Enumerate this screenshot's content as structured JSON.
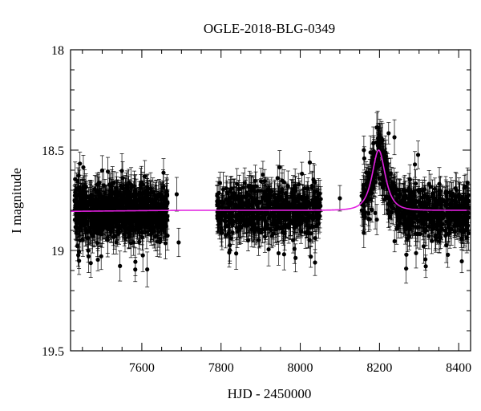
{
  "chart_data": {
    "type": "scatter",
    "title": "OGLE-2018-BLG-0349",
    "xlabel": "HJD - 2450000",
    "ylabel": "I magnitude",
    "xlim": [
      7420,
      8430
    ],
    "ylim": [
      19.5,
      18.0
    ],
    "y_inverted": true,
    "grid": false,
    "x_ticks": [
      {
        "value": 7600,
        "label": "7600"
      },
      {
        "value": 7800,
        "label": "7800"
      },
      {
        "value": 8000,
        "label": "8000"
      },
      {
        "value": 8200,
        "label": "8200"
      },
      {
        "value": 8400,
        "label": "8400"
      }
    ],
    "y_ticks": [
      {
        "value": 18.0,
        "label": "18"
      },
      {
        "value": 18.5,
        "label": "18.5"
      },
      {
        "value": 19.0,
        "label": "19"
      },
      {
        "value": 19.5,
        "label": "19.5"
      }
    ],
    "x_minor_step": 50,
    "y_minor_step": 0.1,
    "series": [
      {
        "kind": "points_with_errorbars",
        "color": "#000000",
        "baseline_mag": 18.8,
        "scatter_mag": 0.06,
        "typical_error": 0.07,
        "seasons": [
          {
            "start": 7430,
            "end": 7665,
            "n_points": 900
          },
          {
            "start": 7790,
            "end": 8052,
            "n_points": 600
          },
          {
            "start": 8155,
            "end": 8425,
            "n_points": 700
          }
        ],
        "isolated_points": [
          {
            "x": 7688,
            "y": 18.72
          },
          {
            "x": 7693,
            "y": 18.96
          },
          {
            "x": 8100,
            "y": 18.74
          }
        ]
      },
      {
        "kind": "model_curve",
        "color": "#e21fe0",
        "baseline_mag": 18.8,
        "peak_time": 8198,
        "peak_mag": 18.5,
        "timescale_days": 22,
        "start_mag": 18.805
      }
    ]
  }
}
